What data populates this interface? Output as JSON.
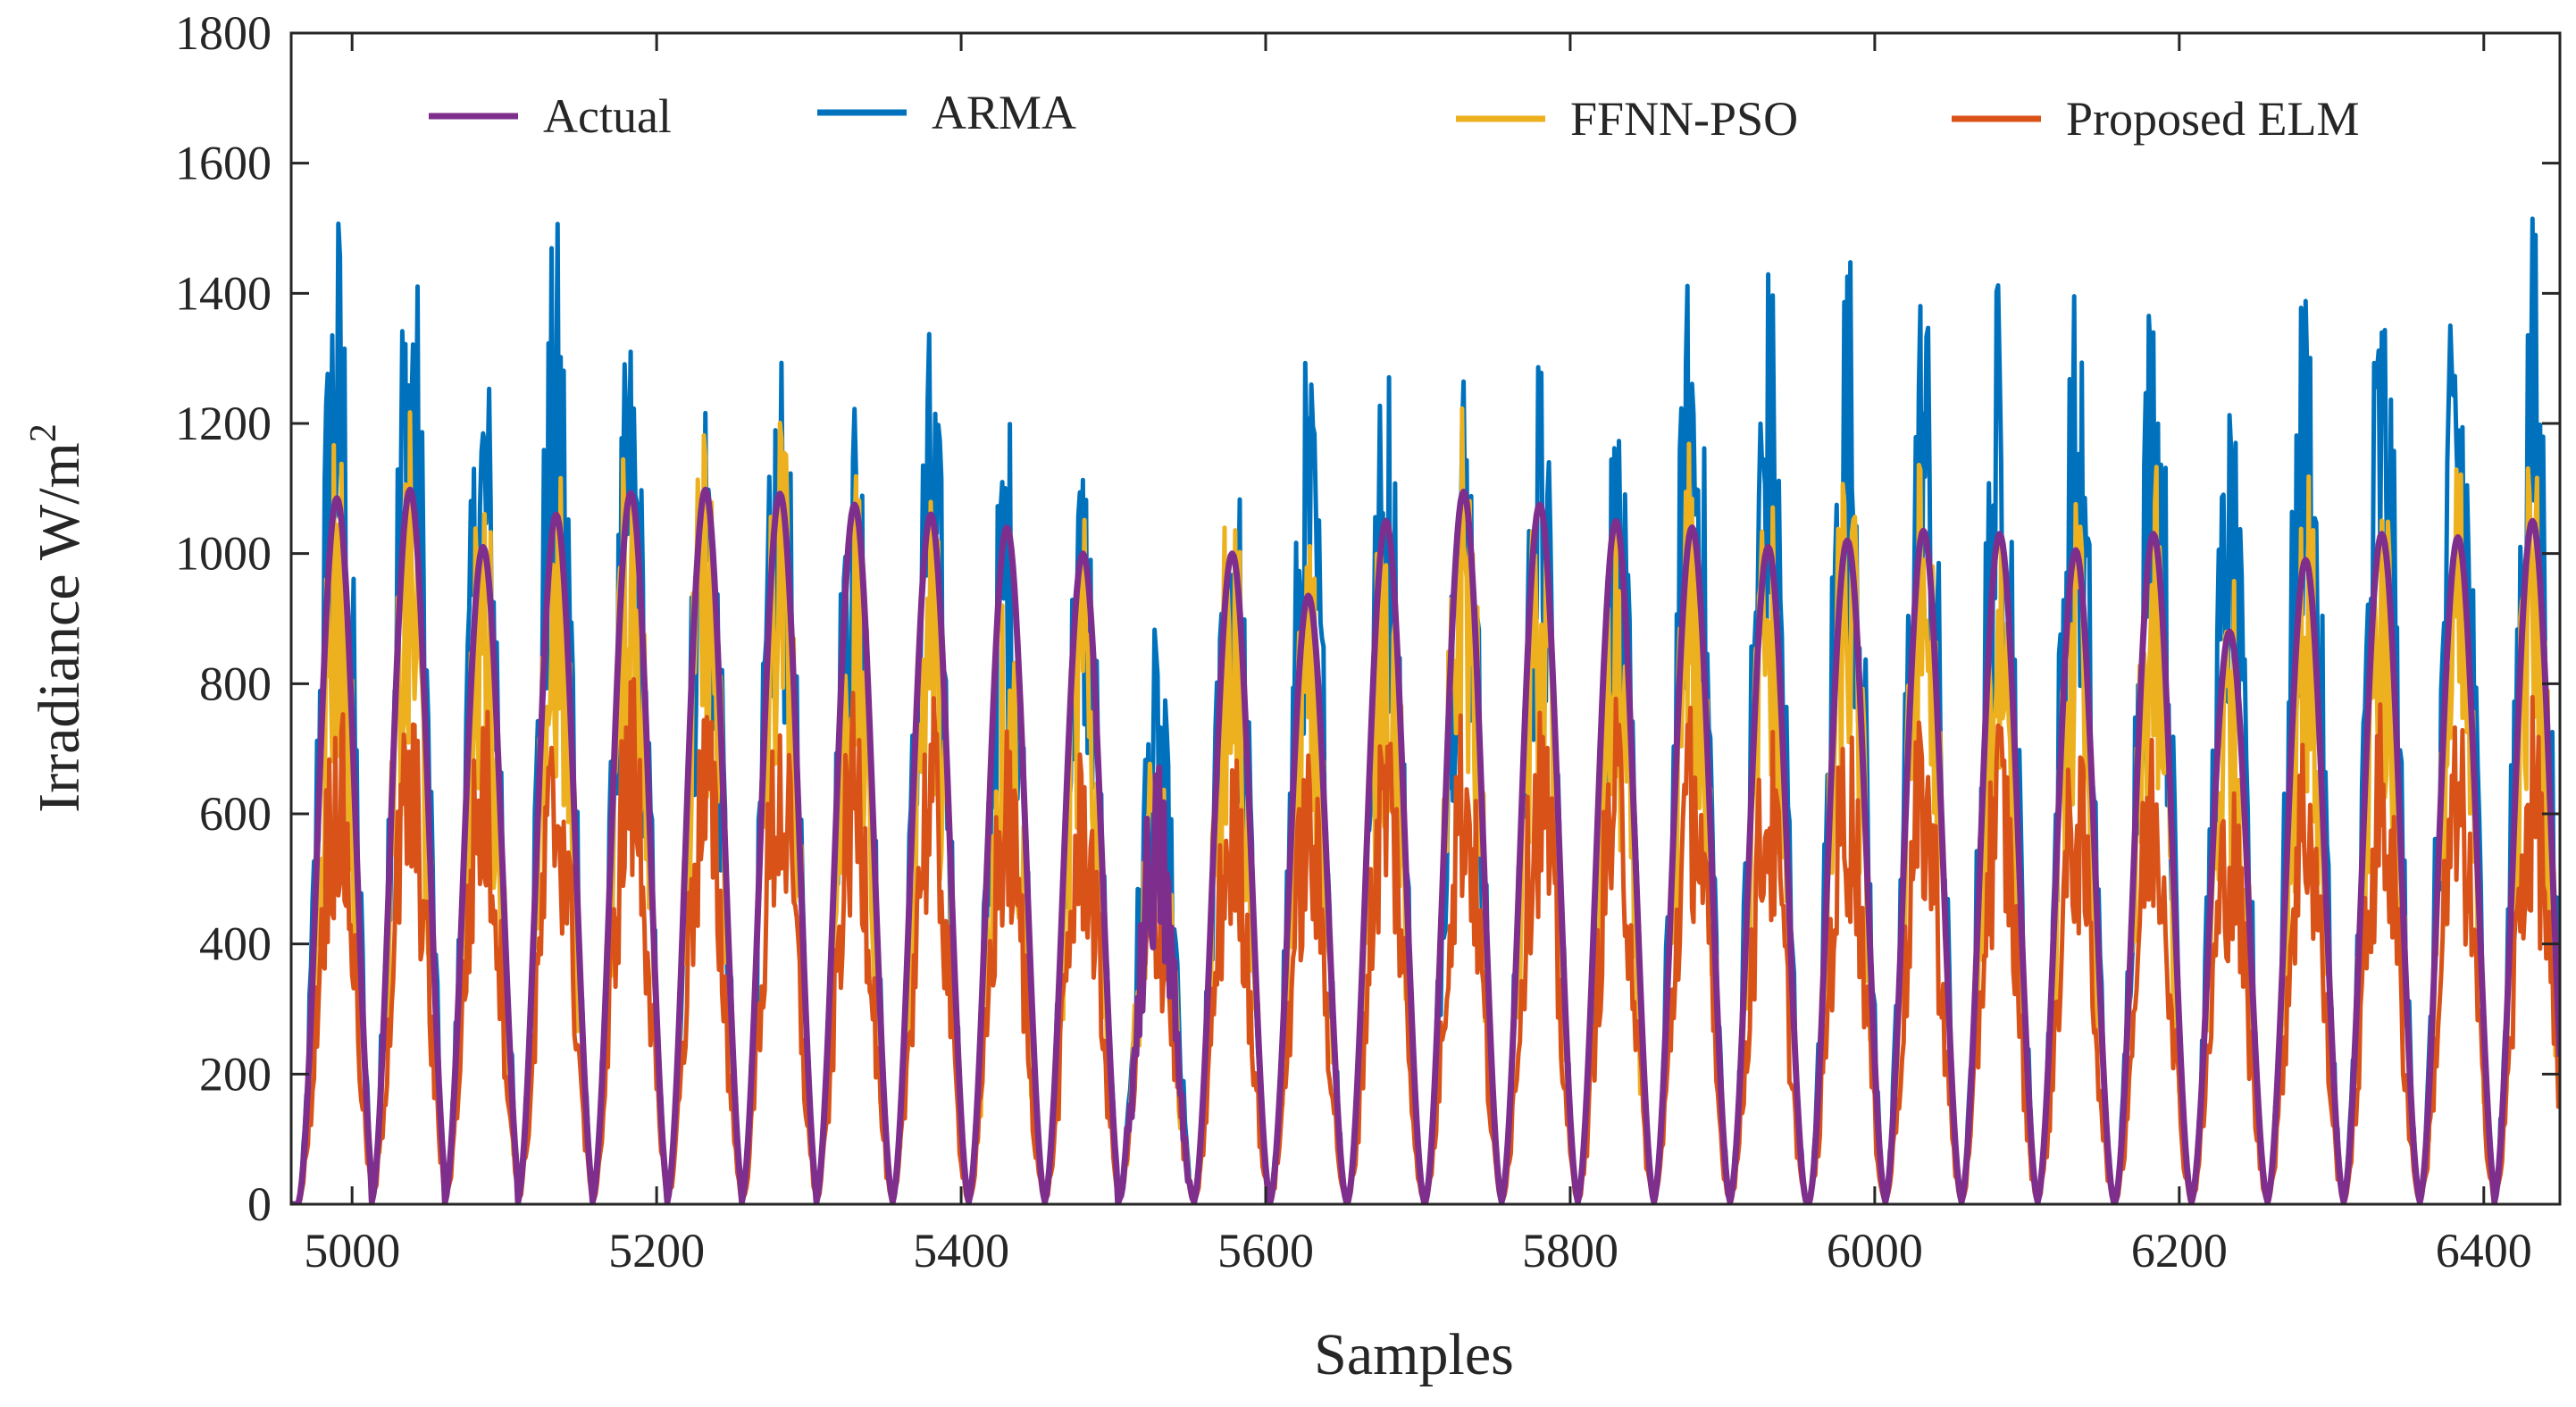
{
  "chart_data": {
    "type": "line",
    "title": "",
    "xlabel": "Samples",
    "ylabel": "Irradiance W/m",
    "ylabel_superscript": "2",
    "xlim": [
      4960,
      6450
    ],
    "ylim": [
      0,
      1800
    ],
    "xticks": [
      5000,
      5200,
      5400,
      5600,
      5800,
      6000,
      6200,
      6400
    ],
    "yticks": [
      0,
      200,
      400,
      600,
      800,
      1000,
      1200,
      1400,
      1600,
      1800
    ],
    "grid": false,
    "legend_position": "top",
    "cycle_period_samples": 50,
    "day_peak_centers": [
      4990,
      5038,
      5086,
      5134,
      5183,
      5232,
      5281,
      5330,
      5380,
      5430,
      5480,
      5528,
      5578,
      5628,
      5679,
      5730,
      5780,
      5830,
      5880,
      5930,
      5982,
      6032,
      6082,
      6132,
      6183,
      6233,
      6283,
      6333,
      6383,
      6432
    ],
    "actual_daily_peak": [
      1085,
      1098,
      1010,
      1060,
      1093,
      1098,
      1092,
      1075,
      1060,
      1040,
      1000,
      700,
      1000,
      935,
      1050,
      1095,
      1075,
      1050,
      1040,
      1010,
      1020,
      1035,
      1030,
      1005,
      1030,
      880,
      990,
      1030,
      1025,
      1050
    ],
    "arma_daily_peak": [
      1570,
      1580,
      1380,
      1530,
      1375,
      1330,
      1355,
      1330,
      1365,
      1250,
      1200,
      890,
      1230,
      1330,
      1340,
      1355,
      1330,
      1250,
      1500,
      1480,
      1520,
      1480,
      1450,
      1420,
      1480,
      1250,
      1460,
      1480,
      1485,
      1545
    ],
    "ffnn_pso_daily_peak": [
      1255,
      1220,
      1160,
      1170,
      1265,
      1235,
      1270,
      1130,
      1140,
      1000,
      1060,
      720,
      1150,
      1040,
      1150,
      1275,
      1150,
      1050,
      1200,
      1150,
      1200,
      1200,
      1150,
      1100,
      1150,
      1000,
      1150,
      1180,
      1150,
      1200
    ],
    "elm_daily_peak": [
      800,
      800,
      800,
      780,
      840,
      800,
      800,
      790,
      790,
      740,
      720,
      560,
      720,
      720,
      800,
      800,
      800,
      780,
      790,
      760,
      780,
      780,
      780,
      740,
      760,
      680,
      760,
      780,
      760,
      780
    ],
    "series": [
      {
        "name": "Actual",
        "color": "#7E2F8E"
      },
      {
        "name": "ARMA",
        "color": "#0072BD"
      },
      {
        "name": "FFNN-PSO",
        "color": "#EDB120"
      },
      {
        "name": "Proposed ELM",
        "color": "#D95319"
      }
    ]
  }
}
